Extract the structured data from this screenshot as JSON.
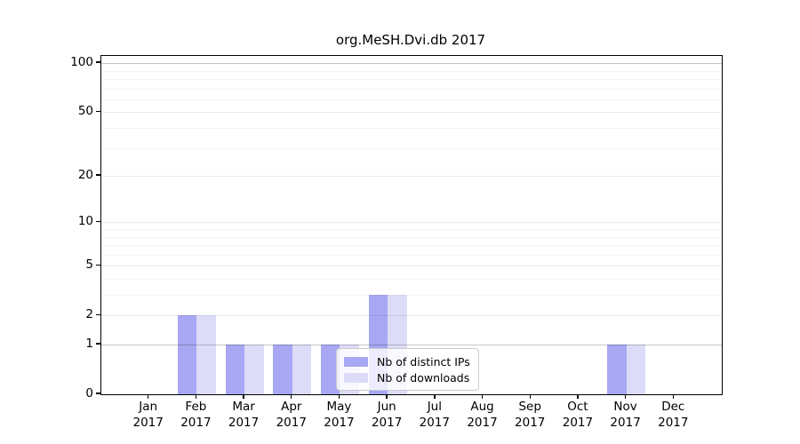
{
  "chart_data": {
    "type": "bar",
    "title": "org.MeSH.Dvi.db 2017",
    "categories": [
      "Jan",
      "Feb",
      "Mar",
      "Apr",
      "May",
      "Jun",
      "Jul",
      "Aug",
      "Sep",
      "Oct",
      "Nov",
      "Dec"
    ],
    "x_year_label": "2017",
    "series": [
      {
        "name": "Nb of distinct IPs",
        "color": "#a7a7f3",
        "values": [
          0,
          2,
          1,
          1,
          1,
          3,
          0,
          0,
          0,
          0,
          1,
          0
        ]
      },
      {
        "name": "Nb of downloads",
        "color": "#dcdcf8",
        "values": [
          0,
          2,
          1,
          1,
          1,
          3,
          0,
          0,
          0,
          0,
          1,
          0
        ]
      }
    ],
    "xlabel": "",
    "ylabel": "",
    "y_axis": {
      "scale": "log1p",
      "tick_values": [
        0,
        1,
        2,
        5,
        10,
        20,
        50,
        100
      ],
      "ylim": [
        0,
        110
      ],
      "strong_gridlines": [
        1,
        100
      ],
      "medium_gridlines": [
        2,
        5,
        10,
        20,
        50
      ],
      "minor_gridlines": [
        3,
        4,
        6,
        7,
        8,
        9,
        30,
        40,
        60,
        70,
        80,
        90
      ],
      "grid": "on"
    },
    "legend_position": "lower center",
    "colors": {
      "background": "#ffffff",
      "axis": "#000000",
      "strong_grid": "rgba(0,0,0,0.22)",
      "medium_grid": "rgba(0,0,0,0.08)",
      "minor_grid": "rgba(0,0,0,0.045)",
      "legend_border": "#cccccc",
      "legend_background": "rgba(255,255,255,0.8)"
    }
  }
}
